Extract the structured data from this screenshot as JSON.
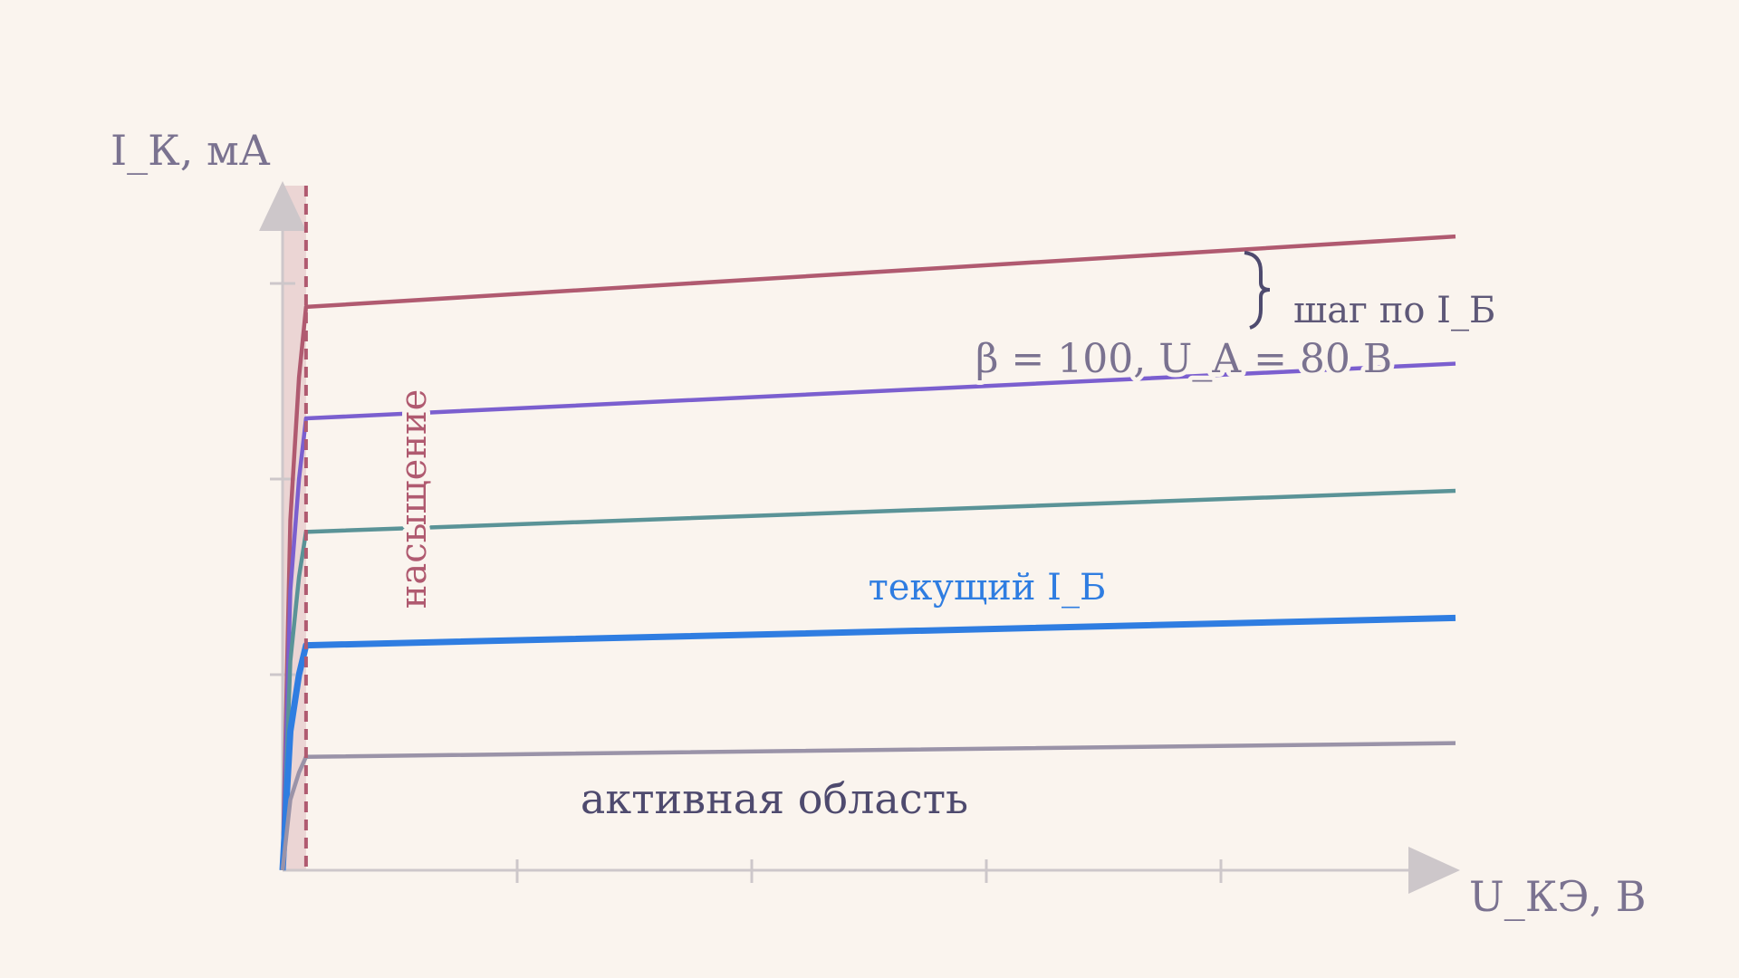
{
  "chart_data": {
    "type": "line",
    "y_label": "I_К, мА",
    "x_label": "U_КЭ, В",
    "x": [
      0,
      0.033,
      0.07,
      0.1,
      5
    ],
    "series": [
      {
        "color": "#b05a70",
        "values": [
          0,
          1.79,
          2.52,
          2.88,
          3.24
        ]
      },
      {
        "color": "#7b5fcf",
        "values": [
          0,
          1.43,
          2.0,
          2.31,
          2.59
        ]
      },
      {
        "color": "#5a9397",
        "values": [
          0,
          1.07,
          1.5,
          1.73,
          1.94
        ]
      },
      {
        "color": "#2f7de1",
        "values": [
          0,
          0.71,
          1.0,
          1.15,
          1.29
        ],
        "highlighted": true
      },
      {
        "color": "#9a93a8",
        "values": [
          0,
          0.36,
          0.5,
          0.58,
          0.65
        ]
      }
    ],
    "xlim": [
      0,
      5
    ],
    "ylim": [
      0,
      3.5
    ],
    "xticks": [
      1,
      2,
      3,
      4
    ],
    "yticks": [
      1,
      2,
      3
    ],
    "tick_labels": false,
    "saturation_limit": 0.1,
    "saturation_label": "насыщение",
    "step_label": "шаг по I_Б",
    "params_label": "β = 100,  U_A = 80 В",
    "current_label": "текущий I_Б",
    "region_label": "активная область"
  }
}
